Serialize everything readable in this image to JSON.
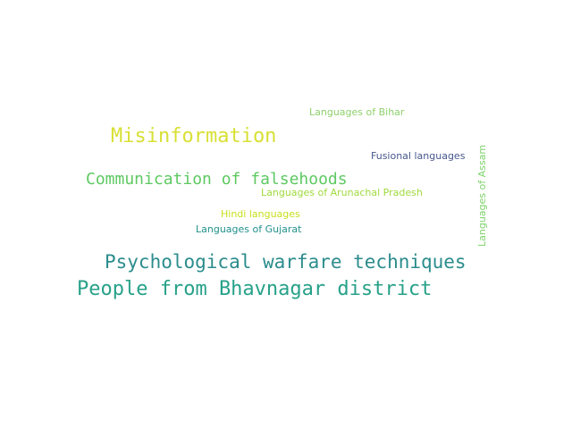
{
  "word_cloud": {
    "words": [
      {
        "text": "Languages of Bihar",
        "color": "#8fd16c"
      },
      {
        "text": "Misinformation",
        "color": "#d8e035"
      },
      {
        "text": "Fusional languages",
        "color": "#46578c"
      },
      {
        "text": "Communication of falsehoods",
        "color": "#5ec962"
      },
      {
        "text": "Languages of Assam",
        "color": "#7dd36a"
      },
      {
        "text": "Languages of Arunachal Pradesh",
        "color": "#9fda3a"
      },
      {
        "text": "Hindi languages",
        "color": "#c8e020"
      },
      {
        "text": "Languages of Gujarat",
        "color": "#21918c"
      },
      {
        "text": "Psychological warfare techniques",
        "color": "#2c8c8c"
      },
      {
        "text": "People from Bhavnagar district",
        "color": "#27a189"
      }
    ]
  }
}
